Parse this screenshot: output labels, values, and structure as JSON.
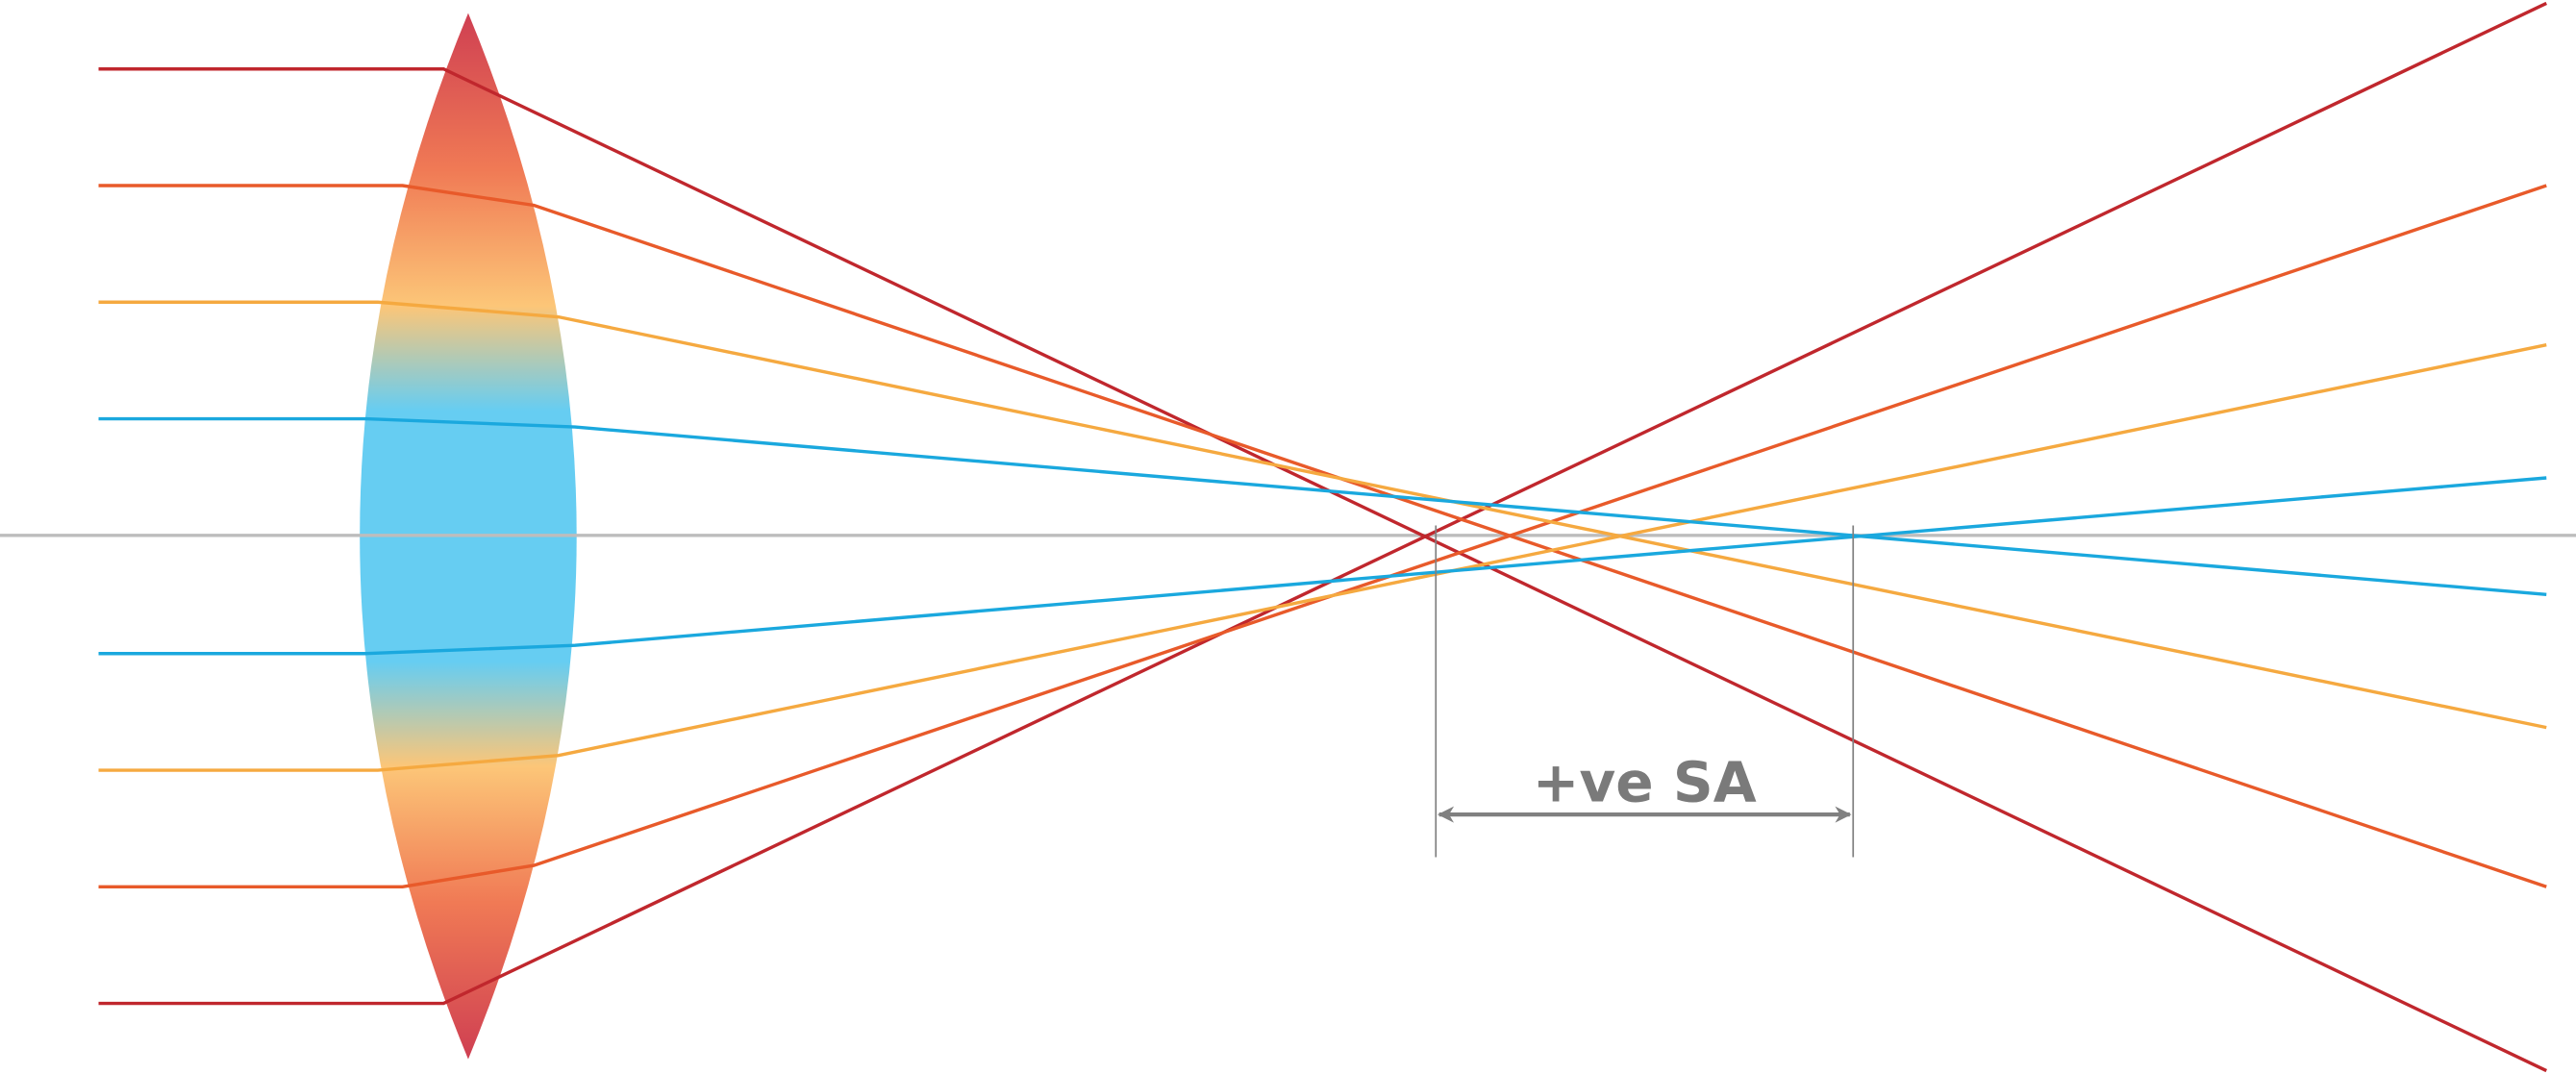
{
  "label": "+ve SA"
}
